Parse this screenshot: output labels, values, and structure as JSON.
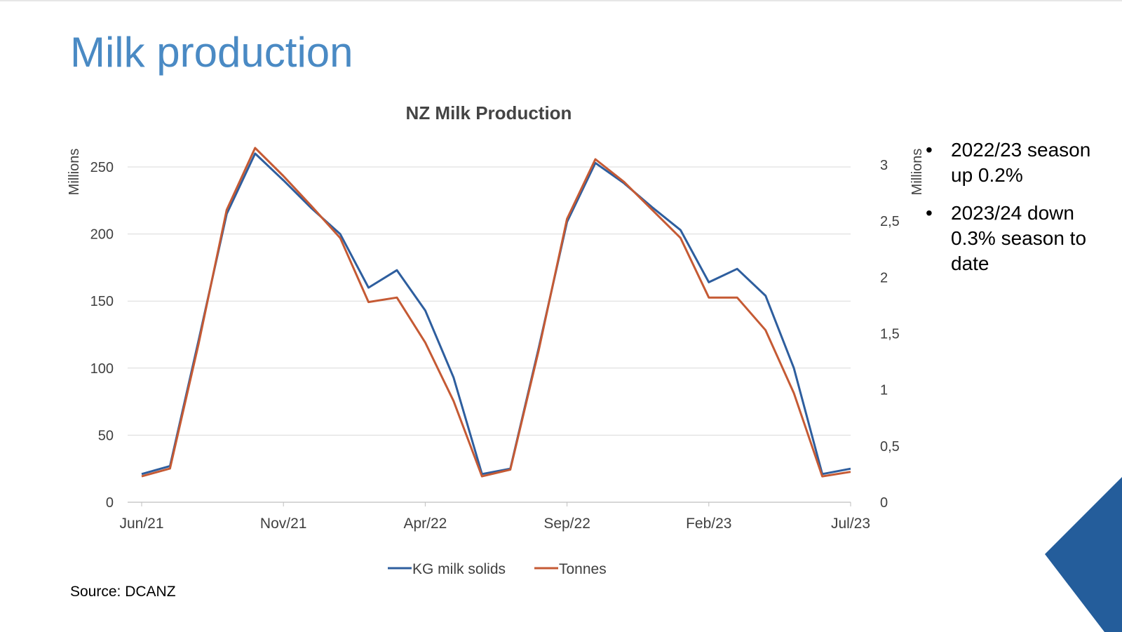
{
  "slide": {
    "title": "Milk production",
    "source": "Source: DCANZ",
    "bullet_marker": "•",
    "bullets": [
      "2022/23 season up 0.2%",
      "2023/24 down 0.3% season to date"
    ],
    "accent_color": "#4a8ac4",
    "corner_color": "#245d9b"
  },
  "chart_data": {
    "type": "line",
    "title": "NZ Milk Production",
    "x_tick_labels": [
      "Jun/21",
      "Nov/21",
      "Apr/22",
      "Sep/22",
      "Feb/23",
      "Jul/23"
    ],
    "x": [
      "Jun/21",
      "Jul/21",
      "Aug/21",
      "Sep/21",
      "Oct/21",
      "Nov/21",
      "Dec/21",
      "Jan/22",
      "Feb/22",
      "Mar/22",
      "Apr/22",
      "May/22",
      "Jun/22",
      "Jul/22",
      "Aug/22",
      "Sep/22",
      "Oct/22",
      "Nov/22",
      "Dec/22",
      "Jan/23",
      "Feb/23",
      "Mar/23",
      "Apr/23",
      "May/23",
      "Jun/23",
      "Jul/23"
    ],
    "y_left": {
      "label": "Millions",
      "lim": [
        0,
        250
      ],
      "ticks": [
        "0",
        "50",
        "100",
        "150",
        "200",
        "250"
      ]
    },
    "y_right": {
      "label": "Millions",
      "lim": [
        0,
        3
      ],
      "ticks": [
        "0",
        "0,5",
        "1",
        "1,5",
        "2",
        "2,5",
        "3"
      ]
    },
    "grid": true,
    "legend_position": "bottom",
    "series": [
      {
        "name": "KG milk solids",
        "axis": "left",
        "color": "#2e5e9e",
        "values": [
          21,
          27,
          120,
          215,
          260,
          240,
          219,
          200,
          160,
          173,
          143,
          93,
          21,
          25,
          115,
          209,
          253,
          238,
          220,
          203,
          164,
          174,
          154,
          100,
          21,
          25
        ]
      },
      {
        "name": "Tonnes",
        "axis": "right",
        "color": "#c55a34",
        "values": [
          0.23,
          0.3,
          1.4,
          2.6,
          3.15,
          2.9,
          2.63,
          2.35,
          1.78,
          1.82,
          1.42,
          0.9,
          0.23,
          0.29,
          1.35,
          2.52,
          3.05,
          2.85,
          2.6,
          2.35,
          1.82,
          1.82,
          1.53,
          0.97,
          0.23,
          0.27
        ]
      }
    ]
  }
}
